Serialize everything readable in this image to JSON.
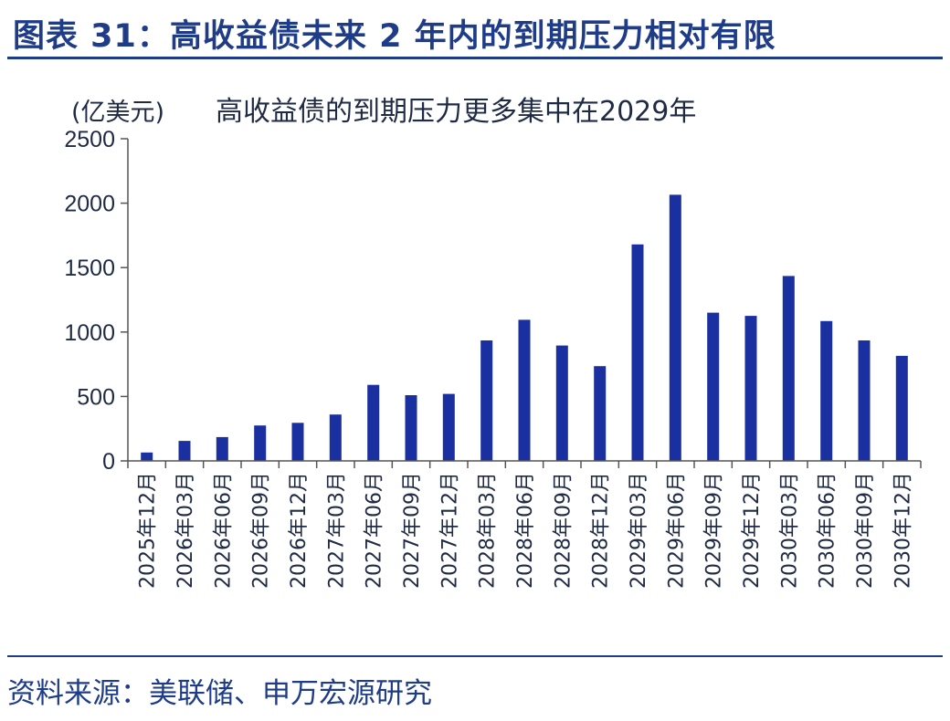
{
  "figure": {
    "title": "图表 31：高收益债未来 2 年内的到期压力相对有限",
    "source": "资料来源：美联储、申万宏源研究"
  },
  "colors": {
    "bar": "#1a2fa0",
    "axis": "#555555",
    "accent": "#1f3c88"
  },
  "chart_data": {
    "type": "bar",
    "title": "高收益债的到期压力更多集中在2029年",
    "ylabel": "(亿美元)",
    "xlabel": "",
    "ylim": [
      0,
      2500
    ],
    "yticks": [
      0,
      500,
      1000,
      1500,
      2000,
      2500
    ],
    "grid": false,
    "legend": "none",
    "categories": [
      "2025年12月",
      "2026年03月",
      "2026年06月",
      "2026年09月",
      "2026年12月",
      "2027年03月",
      "2027年06月",
      "2027年09月",
      "2027年12月",
      "2028年03月",
      "2028年06月",
      "2028年09月",
      "2028年12月",
      "2029年03月",
      "2029年06月",
      "2029年09月",
      "2029年12月",
      "2030年03月",
      "2030年06月",
      "2030年09月",
      "2030年12月"
    ],
    "values": [
      65,
      155,
      185,
      275,
      295,
      360,
      590,
      510,
      520,
      935,
      1095,
      895,
      735,
      1680,
      2065,
      1150,
      1125,
      1435,
      1085,
      935,
      815
    ]
  }
}
